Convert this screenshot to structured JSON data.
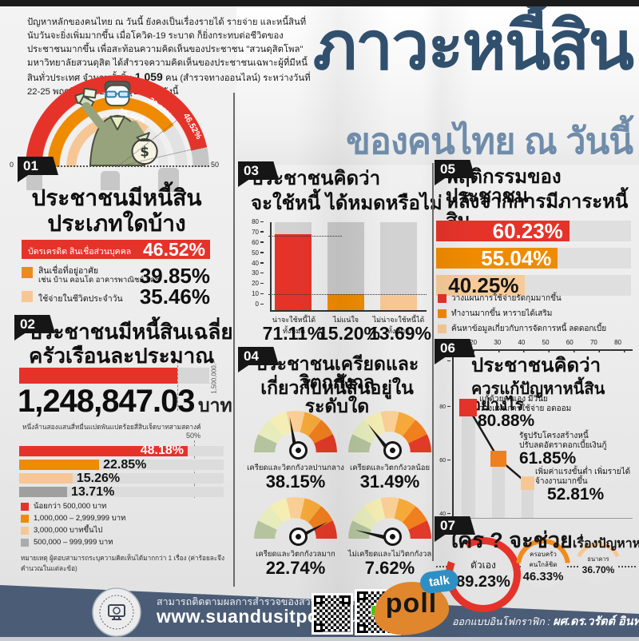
{
  "page": {
    "intro_1": "ปัญหาหลักของคนไทย ณ วันนี้ ยังคงเป็นเรื่องรายได้ รายจ่าย และหนี้สินที่นับวันจะยิ่งเพิ่มมากขึ้น เมื่อโควิด-19 ระบาด ก็ยิ่งกระทบต่อชีวิตของประชาชนมากขึ้น เพื่อสะท้อนความคิดเห็นของประชาชน \"สวนดุสิตโพล\" มหาวิทยาลัยสวนดุสิต ได้สำรวจความคิดเห็นของประชาชนเฉพาะผู้ที่มีหนี้สินทั่วประเทศ จำนวนทั้งสิ้น ",
    "intro_count": "1,059",
    "intro_2": " คน (สำรวจทางออนไลน์) ระหว่างวันที่ 22-25 พฤศจิกายน 2564 สรุปผล ได้ดังนี้",
    "title": "ภาวะหนี้สิน",
    "subtitle": "ของคนไทย ณ วันนี้"
  },
  "colors": {
    "red": "#e5332a",
    "orange": "#ef8b00",
    "tan": "#f6c795",
    "gray": "#9f9f9f",
    "navy": "#31506e",
    "slate": "#6f8caa",
    "footer": "#4b5c76"
  },
  "chart_data": [
    {
      "num": "01",
      "type": "gauge-arc",
      "title1": "ประชาชนมีหนี้สิน",
      "title2": "ประเภทใดบ้าง",
      "axis_min": "0",
      "axis_max": "50",
      "xlim": [
        0,
        50
      ],
      "items": [
        {
          "label": "บัตรเครดิต สินเชื่อส่วนบุคคล",
          "label2": "",
          "pct": "46.52%",
          "value": 46.52,
          "color": "#e5332a"
        },
        {
          "label": "สินเชื่อที่อยู่อาศัย",
          "label2": "เช่น บ้าน คอนโด อาคารพาณิชย์ ฯลฯ",
          "pct": "39.85%",
          "value": 39.85,
          "color": "#ef8b00"
        },
        {
          "label": "ใช้จ่ายในชีวิตประจำวัน",
          "label2": "",
          "pct": "35.46%",
          "value": 35.46,
          "color": "#f6c795"
        }
      ]
    },
    {
      "num": "02",
      "type": "bar",
      "title1": "ประชาชนมีหนี้สินเฉลี่ย",
      "title2": "ครัวเรือนละประมาณ",
      "avg_amount": "1,248,847.03",
      "avg_unit": "บาท",
      "avg_value": 1248847.03,
      "avg_words": "หนึ่งล้านสองแสนสี่หมื่นแปดพันแปดร้อยสี่สิบเจ็ดบาทสามสตางค์",
      "cap_label": "1,500,000.-",
      "axis_label": "50%",
      "categories": [
        "น้อยกว่า 500,000 บาท",
        "1,000,000 – 2,999,999 บาท",
        "3,000,000 บาทขึ้นไป",
        "500,000 – 999,999 บาท"
      ],
      "values": [
        48.18,
        22.85,
        15.26,
        13.71
      ],
      "pcts": [
        "48.18%",
        "22.85%",
        "15.26%",
        "13.71%"
      ],
      "bar_colors": [
        "#e5332a",
        "#ef8b00",
        "#f6c795",
        "#9f9f9f"
      ],
      "note": "หมายเหตุ  ผู้ตอบสามารถระบุความคิดเห็นได้มากกว่า 1 เรื่อง (ค่าร้อยละจึงคำนวณในแต่ละข้อ)"
    },
    {
      "num": "03",
      "type": "bar",
      "title1": "ประชาชนคิดว่า",
      "title2": "จะใช้หนี้ ได้หมดหรือไม่",
      "ylim": [
        0,
        82
      ],
      "yticks": [
        "80",
        "70",
        "60",
        "50",
        "40",
        "30",
        "20",
        "10",
        "0"
      ],
      "categories": [
        "น่าจะใช้หนี้ได้ทั้งหมด",
        "ไม่แน่ใจ",
        "ไม่น่าจะใช้หนี้ได้ทั้งหมด"
      ],
      "values": [
        71.11,
        15.2,
        13.69
      ],
      "pcts": [
        "71.11%",
        "15.20%",
        "13.69%"
      ],
      "bar_colors": [
        "#e5332a",
        "#ef8b00",
        "#f6c795"
      ]
    },
    {
      "num": "04",
      "type": "gauge",
      "title1": "ประชาชนเครียดและวิตกกังวล",
      "title2": "เกี่ยวกับหนี้สินอยู่ในระดับใด",
      "palette": [
        "#b5c39e",
        "#e6ecbc",
        "#f4eeb4",
        "#f9cf96",
        "#f6a93b",
        "#f07f1e",
        "#e23a28"
      ],
      "gauges": [
        {
          "label": "เครียดและวิตกกังวลปานกลาง",
          "pct": "38.15%",
          "value": 38.15,
          "needle_deg": -10
        },
        {
          "label": "เครียดและวิตกกังวลน้อย",
          "pct": "31.49%",
          "value": 31.49,
          "needle_deg": -38
        },
        {
          "label": "เครียดและวิตกกังวลมาก",
          "pct": "22.74%",
          "value": 22.74,
          "needle_deg": 62
        },
        {
          "label": "ไม่เครียดและไม่วิตกกังวล",
          "pct": "7.62%",
          "value": 7.62,
          "needle_deg": -76
        }
      ]
    },
    {
      "num": "05",
      "type": "bar",
      "title1": "พฤติกรรมของประชาชน",
      "title2": "หลังจากการมีภาระหนี้สิน",
      "categories": [
        "วางแผนการใช้จ่ายรัดกุมมากขึ้น",
        "ทำงานมากขึ้น หารายได้เสริม",
        "ค้นหาข้อมูลเกี่ยวกับการจัดการหนี้ ลดดอกเบี้ย"
      ],
      "values": [
        60.23,
        55.04,
        40.25
      ],
      "pcts": [
        "60.23%",
        "55.04%",
        "40.25%"
      ],
      "bar_colors": [
        "#e5332a",
        "#ef8b00",
        "#f7cb97"
      ]
    },
    {
      "num": "06",
      "type": "line",
      "title1": "ประชาชนคิดว่า",
      "title2": "ควรแก้ปัญหาหนี้สินอย่างไร",
      "xticks": [
        "10",
        "20",
        "30",
        "40",
        "50",
        "60",
        "70",
        "80"
      ],
      "yticks": [
        "100",
        "80",
        "60",
        "40"
      ],
      "ylim": [
        40,
        100
      ],
      "points": [
        {
          "label1": "แก้ด้วยตนเอง มีวินัย",
          "label2": "วางแผนการใช้จ่าย อดออม",
          "pct": "80.88%",
          "value": 80.88,
          "color": "#e5332a"
        },
        {
          "label1": "รัฐปรับโครงสร้างหนี้",
          "label2": "ปรับลดอัตราดอกเบี้ยเงินกู้",
          "pct": "61.85%",
          "value": 61.85,
          "color": "#f07f1e"
        },
        {
          "label1": "เพิ่มค่าแรงขั้นต่ำ เพิ่มรายได้",
          "label2": "จ้างงานมากขึ้น",
          "pct": "52.81%",
          "value": 52.81,
          "color": "#f6c795"
        }
      ]
    },
    {
      "num": "07",
      "type": "donut",
      "title_big": "ใคร ? จะช่วย",
      "title_small": "เรื่องปัญหาหนี้สินได้",
      "rings": [
        {
          "label1": "ตัวเอง",
          "label2": "",
          "pct": "89.23%",
          "value": 89.23,
          "color": "#e5332a"
        },
        {
          "label1": "ครอบครัว",
          "label2": "คนใกล้ชิด",
          "pct": "46.33%",
          "value": 46.33,
          "color": "#f08b1e"
        },
        {
          "label1": "ธนาคาร",
          "label2": "",
          "pct": "36.70%",
          "value": 36.7,
          "color": "#f6c795"
        }
      ]
    }
  ],
  "footer": {
    "line1": "สามารถติดตามผลการสำรวจของสวนดุสิตโพลได้ที่",
    "url": "www.suandusitpoll.dusit.ac.th",
    "credit_label": "ออกแบบอินโฟกราฟิก : ",
    "credit_name": "ผศ.ดร.วรัตต์ อินทสระ",
    "poll_logo": "poll",
    "talk_bubble": "talk"
  }
}
